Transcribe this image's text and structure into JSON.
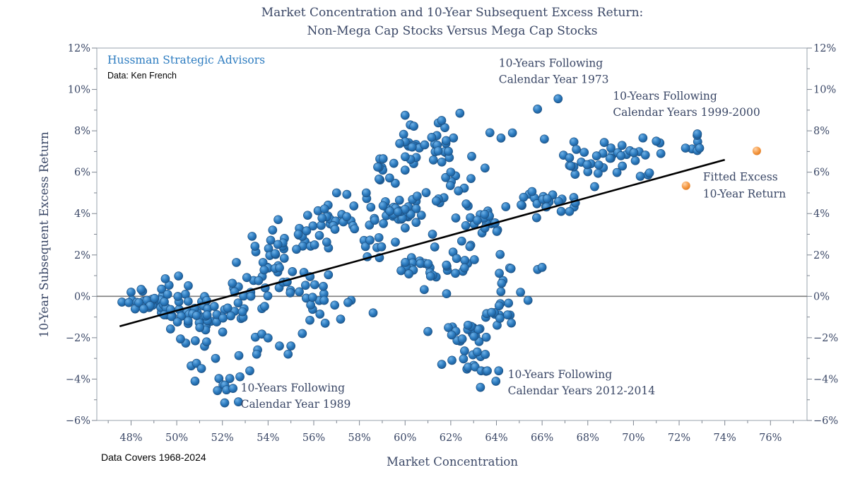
{
  "chart_data": {
    "type": "scatter",
    "title_lines": [
      "Market Concentration and 10-Year Subsequent Excess Return:",
      "Non-Mega Cap Stocks Versus Mega Cap Stocks"
    ],
    "xlabel": "Market Concentration",
    "ylabel": "10-Year Subsequent Excess Return",
    "xlim": [
      46.5,
      77.6
    ],
    "ylim": [
      -6,
      12
    ],
    "x_ticks": [
      48,
      50,
      52,
      54,
      56,
      58,
      60,
      62,
      64,
      66,
      68,
      70,
      72,
      74,
      76
    ],
    "x_tick_labels": [
      "48%",
      "50%",
      "52%",
      "54%",
      "56%",
      "58%",
      "60%",
      "62%",
      "64%",
      "66%",
      "68%",
      "70%",
      "72%",
      "74%",
      "76%"
    ],
    "y_ticks": [
      -6,
      -4,
      -2,
      0,
      2,
      4,
      6,
      8,
      10,
      12
    ],
    "y_tick_labels": [
      "−6%",
      "−4%",
      "−2%",
      "0%",
      "2%",
      "4%",
      "6%",
      "8%",
      "10%",
      "12%"
    ],
    "grid": false,
    "zero_line": true,
    "colors": {
      "points": "#2d7cc0",
      "fit_line": "#000000",
      "fitted_marker": "#f59a45",
      "text": "#3a4766",
      "brand": "#2d7cc0"
    },
    "fit_line": {
      "x": [
        47.5,
        74.0
      ],
      "y": [
        -1.45,
        6.6
      ]
    },
    "fitted_excess_return": {
      "x": 75.4,
      "y": 7.03
    },
    "legend_marker": {
      "x": 72.3,
      "y": 5.35,
      "label_lines": [
        "Fitted Excess",
        "10-Year Return"
      ]
    },
    "annotations": [
      {
        "lines": [
          "10-Years Following",
          "Calendar Year 1973"
        ],
        "x": 64.1,
        "y": 11.1
      },
      {
        "lines": [
          "10-Years Following",
          "Calendar Years 1999-2000"
        ],
        "x": 69.1,
        "y": 9.5
      },
      {
        "lines": [
          "10-Years Following",
          "Calendar Year 1989"
        ],
        "x": 52.8,
        "y": -4.6
      },
      {
        "lines": [
          "10-Years Following",
          "Calendar Years 2012-2014"
        ],
        "x": 64.5,
        "y": -3.95
      }
    ],
    "brand": "Hussman Strategic Advisors",
    "source": "Data: Ken French",
    "coverage": "Data Covers 1968-2024",
    "clusters": [
      {
        "cx": 48.8,
        "cy": -0.2,
        "sx": 0.6,
        "sy": 0.35,
        "n": 30
      },
      {
        "cx": 50.6,
        "cy": -0.8,
        "sx": 0.7,
        "sy": 0.65,
        "n": 40
      },
      {
        "cx": 51.1,
        "cy": -2.8,
        "sx": 0.5,
        "sy": 0.6,
        "n": 9
      },
      {
        "cx": 52.3,
        "cy": -4.4,
        "sx": 0.3,
        "sy": 0.35,
        "n": 8
      },
      {
        "cx": 52.6,
        "cy": -0.9,
        "sx": 0.5,
        "sy": 0.3,
        "n": 14
      },
      {
        "cx": 53.8,
        "cy": -1.9,
        "sx": 0.7,
        "sy": 0.6,
        "n": 7
      },
      {
        "cx": 52.8,
        "cy": 0.4,
        "sx": 0.6,
        "sy": 0.5,
        "n": 12
      },
      {
        "cx": 54.3,
        "cy": 1.2,
        "sx": 0.5,
        "sy": 0.65,
        "n": 22
      },
      {
        "cx": 55.2,
        "cy": 2.6,
        "sx": 0.6,
        "sy": 0.4,
        "n": 22
      },
      {
        "cx": 56.2,
        "cy": 0.0,
        "sx": 0.7,
        "sy": 0.55,
        "n": 18
      },
      {
        "cx": 56.6,
        "cy": 3.6,
        "sx": 0.6,
        "sy": 0.4,
        "n": 18
      },
      {
        "cx": 58.0,
        "cy": 4.0,
        "sx": 0.5,
        "sy": 0.55,
        "n": 10
      },
      {
        "cx": 58.7,
        "cy": 2.5,
        "sx": 0.4,
        "sy": 0.55,
        "n": 10
      },
      {
        "cx": 59.2,
        "cy": 5.9,
        "sx": 0.4,
        "sy": 0.5,
        "n": 10
      },
      {
        "cx": 60.0,
        "cy": 4.1,
        "sx": 0.6,
        "sy": 0.45,
        "n": 30
      },
      {
        "cx": 60.3,
        "cy": 7.2,
        "sx": 0.4,
        "sy": 0.4,
        "n": 12
      },
      {
        "cx": 61.5,
        "cy": 7.4,
        "sx": 0.6,
        "sy": 0.55,
        "n": 22
      },
      {
        "cx": 62.3,
        "cy": 5.2,
        "sx": 0.6,
        "sy": 0.8,
        "n": 18
      },
      {
        "cx": 60.6,
        "cy": 1.3,
        "sx": 0.6,
        "sy": 0.45,
        "n": 22
      },
      {
        "cx": 62.5,
        "cy": 1.6,
        "sx": 0.5,
        "sy": 0.6,
        "n": 14
      },
      {
        "cx": 62.8,
        "cy": -1.7,
        "sx": 0.5,
        "sy": 0.4,
        "n": 22
      },
      {
        "cx": 63.0,
        "cy": -3.3,
        "sx": 0.5,
        "sy": 0.35,
        "n": 14
      },
      {
        "cx": 63.5,
        "cy": 3.6,
        "sx": 0.6,
        "sy": 0.3,
        "n": 16
      },
      {
        "cx": 64.3,
        "cy": -0.9,
        "sx": 0.45,
        "sy": 0.4,
        "n": 14
      },
      {
        "cx": 64.6,
        "cy": 1.0,
        "sx": 0.5,
        "sy": 0.6,
        "n": 10
      },
      {
        "cx": 65.5,
        "cy": 4.4,
        "sx": 0.6,
        "sy": 0.35,
        "n": 16
      },
      {
        "cx": 66.8,
        "cy": 4.6,
        "sx": 0.5,
        "sy": 0.3,
        "n": 8
      },
      {
        "cx": 67.7,
        "cy": 6.4,
        "sx": 0.6,
        "sy": 0.5,
        "n": 14
      },
      {
        "cx": 69.6,
        "cy": 6.9,
        "sx": 0.7,
        "sy": 0.4,
        "n": 24
      },
      {
        "cx": 72.5,
        "cy": 7.2,
        "sx": 0.3,
        "sy": 0.2,
        "n": 6
      }
    ],
    "extra_points": [
      [
        60.0,
        8.75
      ],
      [
        62.4,
        8.85
      ],
      [
        65.8,
        9.05
      ],
      [
        66.7,
        9.55
      ],
      [
        61.6,
        8.5
      ],
      [
        58.8,
        6.25
      ],
      [
        64.2,
        7.65
      ],
      [
        66.1,
        7.6
      ],
      [
        64.7,
        7.9
      ],
      [
        72.8,
        7.85
      ],
      [
        52.1,
        -5.15
      ],
      [
        52.7,
        -5.1
      ],
      [
        53.2,
        -3.6
      ],
      [
        63.3,
        -4.4
      ],
      [
        63.6,
        -3.6
      ],
      [
        64.1,
        -3.6
      ],
      [
        61.0,
        -1.7
      ],
      [
        66.0,
        1.4
      ],
      [
        57.0,
        5.0
      ],
      [
        58.3,
        5.0
      ],
      [
        60.0,
        6.1
      ],
      [
        63.5,
        6.2
      ],
      [
        62.0,
        6.0
      ],
      [
        61.2,
        3.0
      ],
      [
        54.2,
        3.2
      ],
      [
        53.3,
        2.9
      ],
      [
        48.0,
        0.2
      ],
      [
        47.9,
        -0.3
      ],
      [
        49.5,
        0.85
      ],
      [
        55.0,
        -2.4
      ],
      [
        55.5,
        -1.8
      ],
      [
        56.5,
        -1.3
      ],
      [
        57.5,
        -0.3
      ],
      [
        58.6,
        -0.8
      ],
      [
        50.8,
        -4.1
      ],
      [
        51.7,
        -3.0
      ],
      [
        53.5,
        -2.8
      ],
      [
        54.5,
        -2.4
      ],
      [
        67.2,
        4.1
      ],
      [
        70.3,
        5.8
      ],
      [
        71.2,
        6.9
      ],
      [
        68.3,
        5.3
      ],
      [
        67.5,
        7.1
      ],
      [
        71.0,
        7.5
      ]
    ]
  }
}
